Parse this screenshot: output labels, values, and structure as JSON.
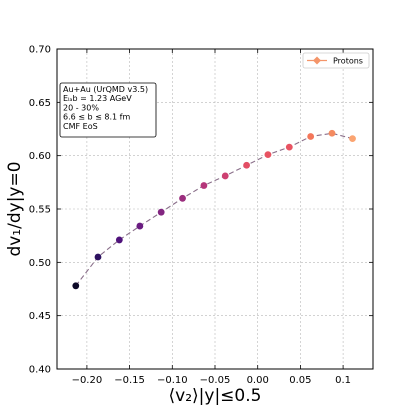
{
  "chart_data": {
    "type": "scatter",
    "xlabel": "⟨v₂⟩|y|≤0.5",
    "ylabel": "dv₁/dy|y=0",
    "xlim": [
      -0.235,
      0.135
    ],
    "ylim": [
      0.4,
      0.7
    ],
    "xticks": [
      -0.2,
      -0.15,
      -0.1,
      -0.05,
      0.0,
      0.05,
      0.1
    ],
    "xtick_labels": [
      "−0.20",
      "−0.15",
      "−0.10",
      "−0.05",
      "0.00",
      "0.05",
      "0.1"
    ],
    "yticks": [
      0.4,
      0.45,
      0.5,
      0.55,
      0.6,
      0.65,
      0.7
    ],
    "ytick_labels": [
      "0.40",
      "0.45",
      "0.50",
      "0.55",
      "0.60",
      "0.65",
      "0.70"
    ],
    "grid": true,
    "legend_position": "top-right",
    "info_box_position": "top-left",
    "info_lines": [
      "Au+Au (UrQMD v3.5)",
      "Eₗₐb = 1.23 AGeV",
      "20 - 30%",
      "6.6 ≤ b ≤ 8.1 fm",
      "CMF EoS"
    ],
    "series": [
      {
        "name": "Protons",
        "color": "#f4956a",
        "line_color": "#8a6f8a",
        "x": [
          -0.213,
          -0.187,
          -0.162,
          -0.138,
          -0.113,
          -0.088,
          -0.063,
          -0.038,
          -0.013,
          0.012,
          0.037,
          0.062,
          0.087,
          0.111
        ],
        "y": [
          0.478,
          0.505,
          0.521,
          0.534,
          0.547,
          0.56,
          0.572,
          0.581,
          0.591,
          0.601,
          0.608,
          0.618,
          0.621,
          0.616
        ],
        "point_colors": [
          "#0c0927",
          "#2d1160",
          "#4f127b",
          "#6a1c81",
          "#832681",
          "#9b2e7e",
          "#b5367a",
          "#cd4071",
          "#e34e65",
          "#e85362",
          "#e85362",
          "#f4775a",
          "#f48b60",
          "#fba471"
        ]
      }
    ]
  }
}
